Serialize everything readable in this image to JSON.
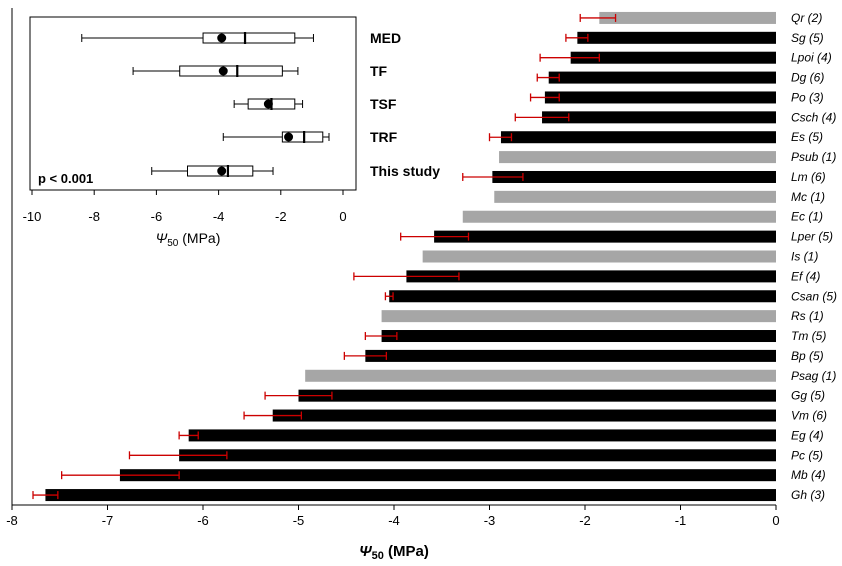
{
  "chart_data": [
    {
      "type": "bar",
      "orientation": "horizontal",
      "xlabel": "Ψ50 (MPa)",
      "xlabel_parts": {
        "symbol": "Ψ",
        "subscript": "50",
        "unit": " (MPa)"
      },
      "xlim": [
        -8,
        0
      ],
      "xticks": [
        "-8",
        "-7",
        "-6",
        "-5",
        "-4",
        "-3",
        "-2",
        "-1",
        "0"
      ],
      "colors": {
        "measured": "#000000",
        "literature": "#a6a6a6",
        "error": "#cc0000"
      },
      "bars": [
        {
          "label": "Qr (2)",
          "value": -1.85,
          "err_lo": -2.05,
          "err_hi": -1.68,
          "gray": true
        },
        {
          "label": "Sg (5)",
          "value": -2.08,
          "err_lo": -2.2,
          "err_hi": -1.97,
          "gray": false
        },
        {
          "label": "Lpoi (4)",
          "value": -2.15,
          "err_lo": -2.47,
          "err_hi": -1.85,
          "gray": false
        },
        {
          "label": "Dg (6)",
          "value": -2.38,
          "err_lo": -2.5,
          "err_hi": -2.27,
          "gray": false
        },
        {
          "label": "Po (3)",
          "value": -2.42,
          "err_lo": -2.57,
          "err_hi": -2.27,
          "gray": false
        },
        {
          "label": "Csch (4)",
          "value": -2.45,
          "err_lo": -2.73,
          "err_hi": -2.17,
          "gray": false
        },
        {
          "label": "Es (5)",
          "value": -2.88,
          "err_lo": -3.0,
          "err_hi": -2.77,
          "gray": false
        },
        {
          "label": "Psub (1)",
          "value": -2.9,
          "gray": true
        },
        {
          "label": "Lm (6)",
          "value": -2.97,
          "err_lo": -3.28,
          "err_hi": -2.65,
          "gray": false
        },
        {
          "label": "Mc (1)",
          "value": -2.95,
          "gray": true
        },
        {
          "label": "Ec (1)",
          "value": -3.28,
          "gray": true
        },
        {
          "label": "Lper (5)",
          "value": -3.58,
          "err_lo": -3.93,
          "err_hi": -3.22,
          "gray": false
        },
        {
          "label": "Is (1)",
          "value": -3.7,
          "gray": true
        },
        {
          "label": "Ef (4)",
          "value": -3.87,
          "err_lo": -4.42,
          "err_hi": -3.32,
          "gray": false
        },
        {
          "label": "Csan (5)",
          "value": -4.05,
          "err_lo": -4.09,
          "err_hi": -4.01,
          "gray": false
        },
        {
          "label": "Rs (1)",
          "value": -4.13,
          "gray": true
        },
        {
          "label": "Tm (5)",
          "value": -4.13,
          "err_lo": -4.3,
          "err_hi": -3.97,
          "gray": false
        },
        {
          "label": "Bp (5)",
          "value": -4.3,
          "err_lo": -4.52,
          "err_hi": -4.08,
          "gray": false
        },
        {
          "label": "Psag (1)",
          "value": -4.93,
          "gray": true
        },
        {
          "label": "Gg (5)",
          "value": -5.0,
          "err_lo": -5.35,
          "err_hi": -4.65,
          "gray": false
        },
        {
          "label": "Vm (6)",
          "value": -5.27,
          "err_lo": -5.57,
          "err_hi": -4.97,
          "gray": false
        },
        {
          "label": "Eg (4)",
          "value": -6.15,
          "err_lo": -6.25,
          "err_hi": -6.05,
          "gray": false
        },
        {
          "label": "Pc (5)",
          "value": -6.25,
          "err_lo": -6.77,
          "err_hi": -5.75,
          "gray": false
        },
        {
          "label": "Mb (4)",
          "value": -6.87,
          "err_lo": -7.48,
          "err_hi": -6.25,
          "gray": false
        },
        {
          "label": "Gh (3)",
          "value": -7.65,
          "err_lo": -7.78,
          "err_hi": -7.52,
          "gray": false
        }
      ]
    },
    {
      "type": "boxplot",
      "orientation": "horizontal",
      "xlabel": "Ψ50 (MPa)",
      "xlabel_parts": {
        "symbol": "Ψ",
        "subscript": "50",
        "unit": " (MPa)"
      },
      "xlim": [
        -10,
        0
      ],
      "xticks": [
        "-10",
        "-8",
        "-6",
        "-4",
        "-2",
        "0"
      ],
      "annotation": "p < 0.001",
      "groups": [
        {
          "label": "MED",
          "min": -8.4,
          "q1": -4.5,
          "median": -3.15,
          "q3": -1.55,
          "max": -0.95,
          "mean": -3.9
        },
        {
          "label": "TF",
          "min": -6.75,
          "q1": -5.25,
          "median": -3.4,
          "q3": -1.95,
          "max": -1.45,
          "mean": -3.85
        },
        {
          "label": "TSF",
          "min": -3.5,
          "q1": -3.05,
          "median": -2.3,
          "q3": -1.55,
          "max": -1.3,
          "mean": -2.4
        },
        {
          "label": "TRF",
          "min": -3.85,
          "q1": -1.95,
          "median": -1.25,
          "q3": -0.65,
          "max": -0.45,
          "mean": -1.75
        },
        {
          "label": "This study",
          "min": -6.15,
          "q1": -5.0,
          "median": -3.7,
          "q3": -2.9,
          "max": -2.25,
          "mean": -3.9
        }
      ]
    }
  ]
}
